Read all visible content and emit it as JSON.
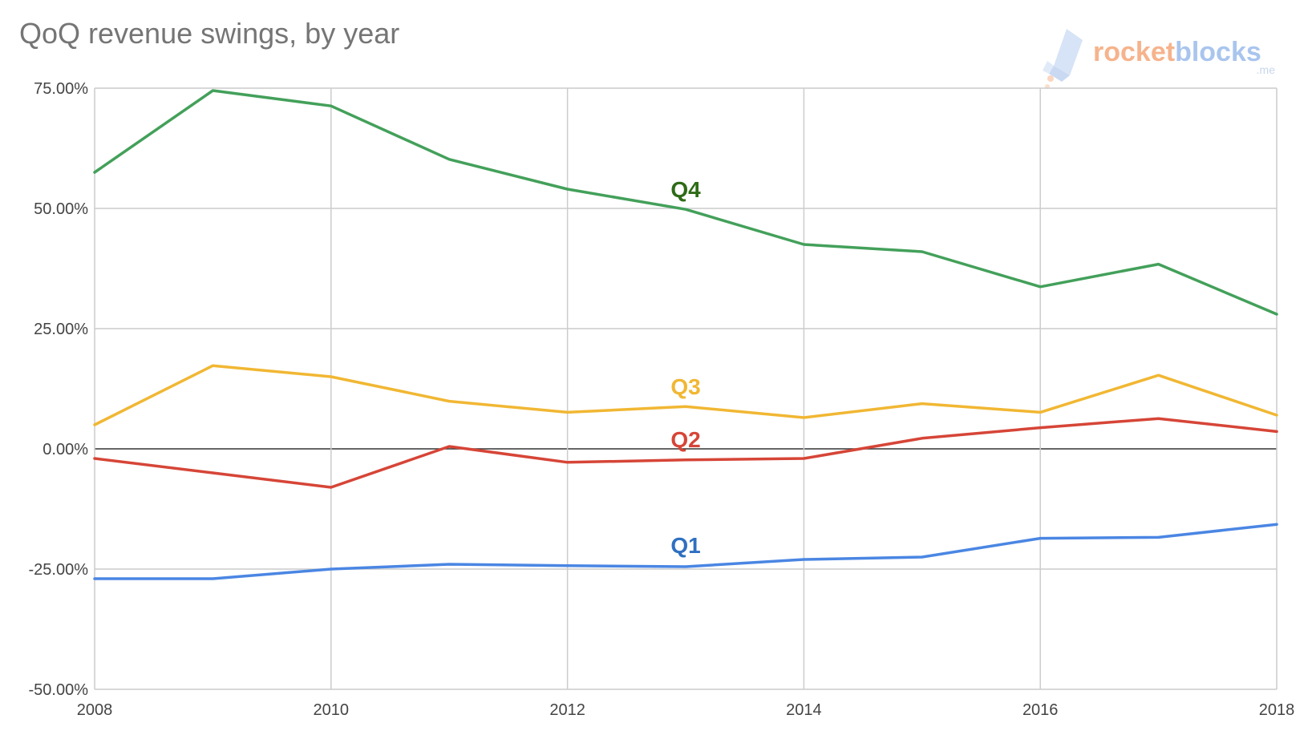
{
  "chart_data": {
    "type": "line",
    "title": "QoQ revenue swings, by year",
    "xlabel": "",
    "ylabel": "",
    "x": [
      2008,
      2009,
      2010,
      2011,
      2012,
      2013,
      2014,
      2015,
      2016,
      2017,
      2018
    ],
    "x_ticks": [
      "2008",
      "2010",
      "2012",
      "2014",
      "2016",
      "2018"
    ],
    "x_tick_values": [
      2008,
      2010,
      2012,
      2014,
      2016,
      2018
    ],
    "y_ticks": [
      "75.00%",
      "50.00%",
      "25.00%",
      "0.00%",
      "-25.00%",
      "-50.00%"
    ],
    "y_tick_values": [
      75,
      50,
      25,
      0,
      -25,
      -50
    ],
    "xlim": [
      2008,
      2018
    ],
    "ylim": [
      -50,
      75
    ],
    "grid": true,
    "legend": "none (series labelled inline)",
    "series": [
      {
        "name": "Q4",
        "color": "#43a05a",
        "label_color": "#2e6b16",
        "label_x": 2013,
        "label_y": 54,
        "values": [
          57.5,
          74.5,
          71.3,
          60.2,
          54.0,
          49.8,
          42.5,
          41.0,
          33.7,
          38.4,
          28.0
        ]
      },
      {
        "name": "Q3",
        "color": "#f1b733",
        "label_color": "#f1b733",
        "label_x": 2013,
        "label_y": 13,
        "values": [
          5.0,
          17.3,
          15.0,
          9.9,
          7.6,
          8.8,
          6.5,
          9.4,
          7.6,
          15.3,
          7.0
        ]
      },
      {
        "name": "Q2",
        "color": "#d64537",
        "label_color": "#d64537",
        "label_x": 2013,
        "label_y": 2,
        "values": [
          -2.0,
          -5.0,
          -8.0,
          0.5,
          -2.8,
          -2.3,
          -2.0,
          2.2,
          4.4,
          6.3,
          3.6
        ]
      },
      {
        "name": "Q1",
        "color": "#4a86e3",
        "label_color": "#2f6fc1",
        "label_x": 2013,
        "label_y": -20,
        "values": [
          -27.0,
          -27.0,
          -25.0,
          -24.0,
          -24.3,
          -24.5,
          -23.0,
          -22.5,
          -18.6,
          -18.4,
          -15.7
        ]
      }
    ]
  },
  "brand": {
    "name_part1": "rocket",
    "name_part2": "blocks",
    "suffix": ".me",
    "color_part1": "#f6b38c",
    "color_part2": "#a9c5ee",
    "icon": "rocket-icon"
  }
}
